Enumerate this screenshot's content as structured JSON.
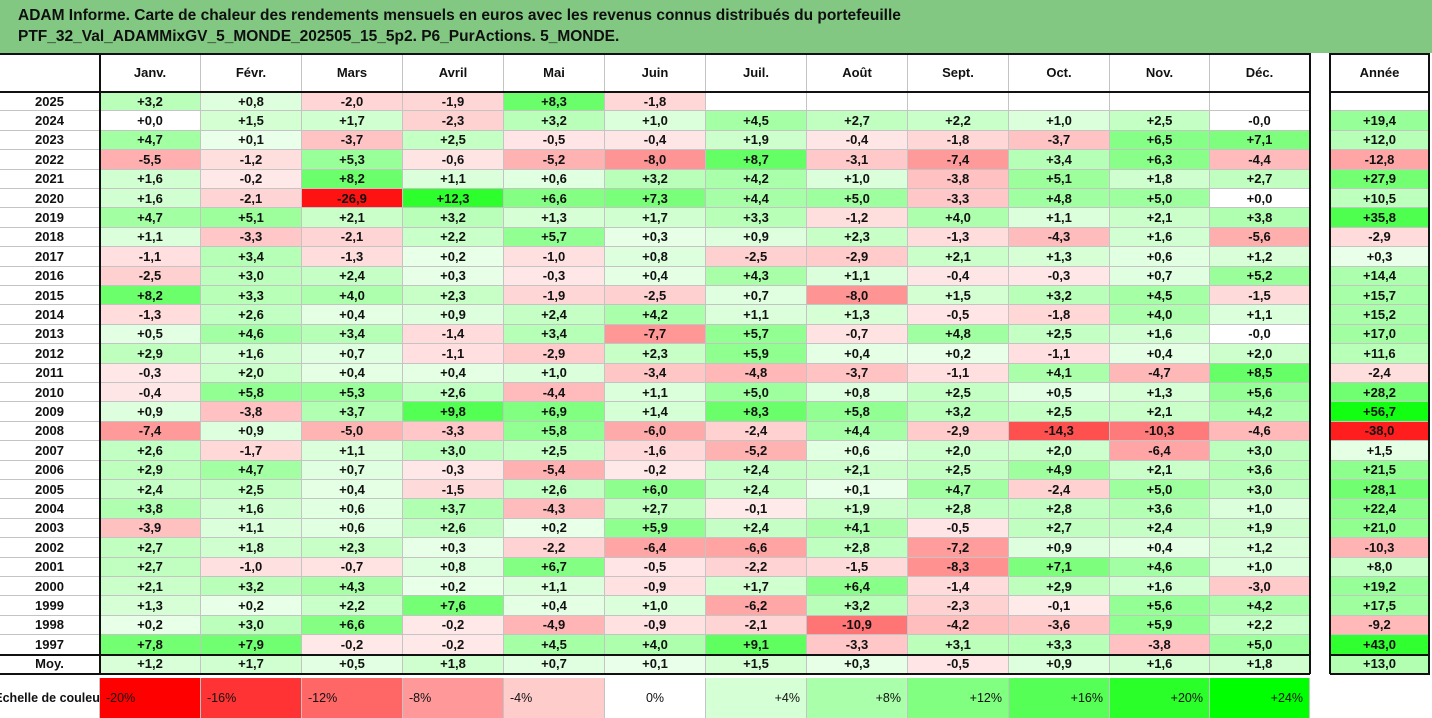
{
  "title_lines": [
    "ADAM Informe. Carte de chaleur des rendements mensuels en euros avec les revenus connus distribués du portefeuille",
    "PTF_32_Val_ADAMMixGV_5_MONDE_202505_15_5p2. P6_PurActions. 5_MONDE."
  ],
  "chart_data": {
    "type": "heatmap",
    "title": "ADAM Informe. Carte de chaleur des rendements mensuels en euros avec les revenus connus distribués du portefeuille PTF_32_Val_ADAMMixGV_5_MONDE_202505_15_5p2. P6_PurActions. 5_MONDE.",
    "columns": [
      "Janv.",
      "Févr.",
      "Mars",
      "Avril",
      "Mai",
      "Juin",
      "Juil.",
      "Août",
      "Sept.",
      "Oct.",
      "Nov.",
      "Déc."
    ],
    "annual_header": "Année",
    "rows": [
      {
        "year": "2025",
        "values": [
          "+3,2",
          "+0,8",
          "-2,0",
          "-1,9",
          "+8,3",
          "-1,8",
          "",
          "",
          "",
          "",
          "",
          ""
        ],
        "annual": ""
      },
      {
        "year": "2024",
        "values": [
          "+0,0",
          "+1,5",
          "+1,7",
          "-2,3",
          "+3,2",
          "+1,0",
          "+4,5",
          "+2,7",
          "+2,2",
          "+1,0",
          "+2,5",
          "-0,0"
        ],
        "annual": "+19,4"
      },
      {
        "year": "2023",
        "values": [
          "+4,7",
          "+0,1",
          "-3,7",
          "+2,5",
          "-0,5",
          "-0,4",
          "+1,9",
          "-0,4",
          "-1,8",
          "-3,7",
          "+6,5",
          "+7,1"
        ],
        "annual": "+12,0"
      },
      {
        "year": "2022",
        "values": [
          "-5,5",
          "-1,2",
          "+5,3",
          "-0,6",
          "-5,2",
          "-8,0",
          "+8,7",
          "-3,1",
          "-7,4",
          "+3,4",
          "+6,3",
          "-4,4"
        ],
        "annual": "-12,8"
      },
      {
        "year": "2021",
        "values": [
          "+1,6",
          "-0,2",
          "+8,2",
          "+1,1",
          "+0,6",
          "+3,2",
          "+4,2",
          "+1,0",
          "-3,8",
          "+5,1",
          "+1,8",
          "+2,7"
        ],
        "annual": "+27,9"
      },
      {
        "year": "2020",
        "values": [
          "+1,6",
          "-2,1",
          "-26,9",
          "+12,3",
          "+6,6",
          "+7,3",
          "+4,4",
          "+5,0",
          "-3,3",
          "+4,8",
          "+5,0",
          "+0,0"
        ],
        "annual": "+10,5"
      },
      {
        "year": "2019",
        "values": [
          "+4,7",
          "+5,1",
          "+2,1",
          "+3,2",
          "+1,3",
          "+1,7",
          "+3,3",
          "-1,2",
          "+4,0",
          "+1,1",
          "+2,1",
          "+3,8"
        ],
        "annual": "+35,8"
      },
      {
        "year": "2018",
        "values": [
          "+1,1",
          "-3,3",
          "-2,1",
          "+2,2",
          "+5,7",
          "+0,3",
          "+0,9",
          "+2,3",
          "-1,3",
          "-4,3",
          "+1,6",
          "-5,6"
        ],
        "annual": "-2,9"
      },
      {
        "year": "2017",
        "values": [
          "-1,1",
          "+3,4",
          "-1,3",
          "+0,2",
          "-1,0",
          "+0,8",
          "-2,5",
          "-2,9",
          "+2,1",
          "+1,3",
          "+0,6",
          "+1,2"
        ],
        "annual": "+0,3"
      },
      {
        "year": "2016",
        "values": [
          "-2,5",
          "+3,0",
          "+2,4",
          "+0,3",
          "-0,3",
          "+0,4",
          "+4,3",
          "+1,1",
          "-0,4",
          "-0,3",
          "+0,7",
          "+5,2"
        ],
        "annual": "+14,4"
      },
      {
        "year": "2015",
        "values": [
          "+8,2",
          "+3,3",
          "+4,0",
          "+2,3",
          "-1,9",
          "-2,5",
          "+0,7",
          "-8,0",
          "+1,5",
          "+3,2",
          "+4,5",
          "-1,5"
        ],
        "annual": "+15,7"
      },
      {
        "year": "2014",
        "values": [
          "-1,3",
          "+2,6",
          "+0,4",
          "+0,9",
          "+2,4",
          "+4,2",
          "+1,1",
          "+1,3",
          "-0,5",
          "-1,8",
          "+4,0",
          "+1,1"
        ],
        "annual": "+15,2"
      },
      {
        "year": "2013",
        "values": [
          "+0,5",
          "+4,6",
          "+3,4",
          "-1,4",
          "+3,4",
          "-7,7",
          "+5,7",
          "-0,7",
          "+4,8",
          "+2,5",
          "+1,6",
          "-0,0"
        ],
        "annual": "+17,0"
      },
      {
        "year": "2012",
        "values": [
          "+2,9",
          "+1,6",
          "+0,7",
          "-1,1",
          "-2,9",
          "+2,3",
          "+5,9",
          "+0,4",
          "+0,2",
          "-1,1",
          "+0,4",
          "+2,0"
        ],
        "annual": "+11,6"
      },
      {
        "year": "2011",
        "values": [
          "-0,3",
          "+2,0",
          "+0,4",
          "+0,4",
          "+1,0",
          "-3,4",
          "-4,8",
          "-3,7",
          "-1,1",
          "+4,1",
          "-4,7",
          "+8,5"
        ],
        "annual": "-2,4"
      },
      {
        "year": "2010",
        "values": [
          "-0,4",
          "+5,8",
          "+5,3",
          "+2,6",
          "-4,4",
          "+1,1",
          "+5,0",
          "+0,8",
          "+2,5",
          "+0,5",
          "+1,3",
          "+5,6"
        ],
        "annual": "+28,2"
      },
      {
        "year": "2009",
        "values": [
          "+0,9",
          "-3,8",
          "+3,7",
          "+9,8",
          "+6,9",
          "+1,4",
          "+8,3",
          "+5,8",
          "+3,2",
          "+2,5",
          "+2,1",
          "+4,2"
        ],
        "annual": "+56,7"
      },
      {
        "year": "2008",
        "values": [
          "-7,4",
          "+0,9",
          "-5,0",
          "-3,3",
          "+5,8",
          "-6,0",
          "-2,4",
          "+4,4",
          "-2,9",
          "-14,3",
          "-10,3",
          "-4,6"
        ],
        "annual": "-38,0"
      },
      {
        "year": "2007",
        "values": [
          "+2,6",
          "-1,7",
          "+1,1",
          "+3,0",
          "+2,5",
          "-1,6",
          "-5,2",
          "+0,6",
          "+2,0",
          "+2,0",
          "-6,4",
          "+3,0"
        ],
        "annual": "+1,5"
      },
      {
        "year": "2006",
        "values": [
          "+2,9",
          "+4,7",
          "+0,7",
          "-0,3",
          "-5,4",
          "-0,2",
          "+2,4",
          "+2,1",
          "+2,5",
          "+4,9",
          "+2,1",
          "+3,6"
        ],
        "annual": "+21,5"
      },
      {
        "year": "2005",
        "values": [
          "+2,4",
          "+2,5",
          "+0,4",
          "-1,5",
          "+2,6",
          "+6,0",
          "+2,4",
          "+0,1",
          "+4,7",
          "-2,4",
          "+5,0",
          "+3,0"
        ],
        "annual": "+28,1"
      },
      {
        "year": "2004",
        "values": [
          "+3,8",
          "+1,6",
          "+0,6",
          "+3,7",
          "-4,3",
          "+2,7",
          "-0,1",
          "+1,9",
          "+2,8",
          "+2,8",
          "+3,6",
          "+1,0"
        ],
        "annual": "+22,4"
      },
      {
        "year": "2003",
        "values": [
          "-3,9",
          "+1,1",
          "+0,6",
          "+2,6",
          "+0,2",
          "+5,9",
          "+2,4",
          "+4,1",
          "-0,5",
          "+2,7",
          "+2,4",
          "+1,9"
        ],
        "annual": "+21,0"
      },
      {
        "year": "2002",
        "values": [
          "+2,7",
          "+1,8",
          "+2,3",
          "+0,3",
          "-2,2",
          "-6,4",
          "-6,6",
          "+2,8",
          "-7,2",
          "+0,9",
          "+0,4",
          "+1,2"
        ],
        "annual": "-10,3"
      },
      {
        "year": "2001",
        "values": [
          "+2,7",
          "-1,0",
          "-0,7",
          "+0,8",
          "+6,7",
          "-0,5",
          "-2,2",
          "-1,5",
          "-8,3",
          "+7,1",
          "+4,6",
          "+1,0"
        ],
        "annual": "+8,0"
      },
      {
        "year": "2000",
        "values": [
          "+2,1",
          "+3,2",
          "+4,3",
          "+0,2",
          "+1,1",
          "-0,9",
          "+1,7",
          "+6,4",
          "-1,4",
          "+2,9",
          "+1,6",
          "-3,0"
        ],
        "annual": "+19,2"
      },
      {
        "year": "1999",
        "values": [
          "+1,3",
          "+0,2",
          "+2,2",
          "+7,6",
          "+0,4",
          "+1,0",
          "-6,2",
          "+3,2",
          "-2,3",
          "-0,1",
          "+5,6",
          "+4,2"
        ],
        "annual": "+17,5"
      },
      {
        "year": "1998",
        "values": [
          "+0,2",
          "+3,0",
          "+6,6",
          "-0,2",
          "-4,9",
          "-0,9",
          "-2,1",
          "-10,9",
          "-4,2",
          "-3,6",
          "+5,9",
          "+2,2"
        ],
        "annual": "-9,2"
      },
      {
        "year": "1997",
        "values": [
          "+7,8",
          "+7,9",
          "-0,2",
          "-0,2",
          "+4,5",
          "+4,0",
          "+9,1",
          "-3,3",
          "+3,1",
          "+3,3",
          "-3,8",
          "+5,0"
        ],
        "annual": "+43,0"
      }
    ],
    "average": {
      "label": "Moy.",
      "values": [
        "+1,2",
        "+1,7",
        "+0,5",
        "+1,8",
        "+0,7",
        "+0,1",
        "+1,5",
        "+0,3",
        "-0,5",
        "+0,9",
        "+1,6",
        "+1,8"
      ],
      "annual": "+13,0"
    },
    "color_scale": {
      "label": "Echelle de couleur",
      "stops": [
        "-20%",
        "-16%",
        "-12%",
        "-8%",
        "-4%",
        "0%",
        "+4%",
        "+8%",
        "+12%",
        "+16%",
        "+20%",
        "+24%"
      ],
      "stop_values": [
        -20,
        -16,
        -12,
        -8,
        -4,
        0,
        4,
        8,
        12,
        16,
        20,
        24
      ],
      "negative_color": "#ff0000",
      "positive_color": "#00ff00",
      "neutral_color": "#ffffff"
    }
  }
}
